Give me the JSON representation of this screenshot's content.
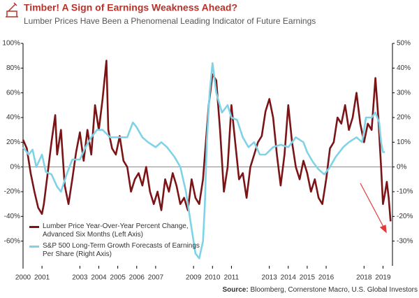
{
  "chart_data": {
    "type": "line",
    "title": "Timber! A Sign of Earnings Weakness Ahead?",
    "subtitle": "Lumber Prices Have Been a Phenomenal Leading Indicator of Future Earnings",
    "source_label": "Source:",
    "source": "Bloomberg, Cornerstone Macro, U.S. Global Investors",
    "xlim": [
      2000,
      2019.5
    ],
    "xticks": [
      2000,
      2001,
      2003,
      2004,
      2005,
      2006,
      2007,
      2009,
      2010,
      2011,
      2013,
      2014,
      2015,
      2016,
      2018,
      2019
    ],
    "ylim": [
      -80,
      100
    ],
    "yticks": [
      {
        "value": -60,
        "label": "-60%"
      },
      {
        "value": -40,
        "label": "-40%"
      },
      {
        "value": -20,
        "label": "-20%"
      },
      {
        "value": 0,
        "label": "0%"
      },
      {
        "value": 20,
        "label": "20%"
      },
      {
        "value": 40,
        "label": "40%"
      },
      {
        "value": 60,
        "label": "60%"
      },
      {
        "value": 80,
        "label": "80%"
      },
      {
        "value": 100,
        "label": "100%"
      }
    ],
    "y2lim": [
      -40,
      50
    ],
    "y2ticks": [
      {
        "value": -30,
        "label": "-30%"
      },
      {
        "value": -20,
        "label": "-20%"
      },
      {
        "value": -10,
        "label": "-10%"
      },
      {
        "value": 0,
        "label": "0%"
      },
      {
        "value": 10,
        "label": "10%"
      },
      {
        "value": 20,
        "label": "20%"
      },
      {
        "value": 30,
        "label": "30%"
      },
      {
        "value": 40,
        "label": "40%"
      },
      {
        "value": 50,
        "label": "50%"
      }
    ],
    "grid": false,
    "legend": "lower-left",
    "series": [
      {
        "name": "Lumber Price Year-Over-Year Percent Change, Advanced Six Months (Left Axis)",
        "color": "#7b1416",
        "axis": "y",
        "x": [
          2000.0,
          2000.2,
          2000.4,
          2000.6,
          2000.8,
          2001.0,
          2001.1,
          2001.3,
          2001.5,
          2001.7,
          2001.8,
          2002.0,
          2002.2,
          2002.4,
          2002.6,
          2002.8,
          2003.0,
          2003.2,
          2003.4,
          2003.6,
          2003.8,
          2004.0,
          2004.2,
          2004.4,
          2004.5,
          2004.7,
          2004.9,
          2005.1,
          2005.3,
          2005.5,
          2005.7,
          2005.9,
          2006.1,
          2006.3,
          2006.5,
          2006.7,
          2006.9,
          2007.1,
          2007.3,
          2007.5,
          2007.7,
          2007.9,
          2008.1,
          2008.3,
          2008.5,
          2008.7,
          2008.9,
          2009.1,
          2009.3,
          2009.5,
          2009.6,
          2009.8,
          2010.0,
          2010.2,
          2010.4,
          2010.6,
          2010.8,
          2011.0,
          2011.2,
          2011.4,
          2011.6,
          2011.8,
          2012.0,
          2012.2,
          2012.4,
          2012.6,
          2012.8,
          2013.0,
          2013.2,
          2013.4,
          2013.6,
          2013.8,
          2014.0,
          2014.2,
          2014.4,
          2014.6,
          2014.8,
          2015.0,
          2015.2,
          2015.4,
          2015.6,
          2015.8,
          2016.0,
          2016.2,
          2016.4,
          2016.6,
          2016.8,
          2017.0,
          2017.2,
          2017.4,
          2017.6,
          2017.8,
          2018.0,
          2018.2,
          2018.4,
          2018.6,
          2018.75,
          2018.9,
          2019.0,
          2019.1,
          2019.2,
          2019.3,
          2019.4
        ],
        "values": [
          22,
          15,
          -5,
          -20,
          -33,
          -38,
          -30,
          -5,
          20,
          42,
          10,
          30,
          -15,
          -30,
          -10,
          12,
          28,
          5,
          30,
          10,
          50,
          30,
          55,
          86,
          30,
          15,
          10,
          25,
          5,
          0,
          -20,
          -10,
          -5,
          -15,
          0,
          -20,
          -30,
          -20,
          -35,
          -10,
          -20,
          -5,
          -15,
          -30,
          -25,
          -35,
          -10,
          -25,
          -30,
          -10,
          10,
          50,
          75,
          70,
          30,
          -20,
          0,
          50,
          20,
          -10,
          -5,
          -25,
          0,
          10,
          20,
          25,
          45,
          55,
          40,
          10,
          -15,
          10,
          50,
          20,
          0,
          -10,
          5,
          -5,
          -20,
          -10,
          -25,
          -30,
          -10,
          15,
          20,
          40,
          35,
          50,
          30,
          40,
          60,
          35,
          20,
          35,
          30,
          72,
          40,
          0,
          -30,
          -22,
          -12,
          -25,
          -44
        ]
      },
      {
        "name": "S&P 500 Long-Term Growth Forecasts of Earnings Per Share (Right Axis)",
        "color": "#7fd3e6",
        "axis": "y2",
        "x": [
          2000.0,
          2000.3,
          2000.5,
          2000.7,
          2001.0,
          2001.2,
          2001.5,
          2001.8,
          2002.0,
          2002.3,
          2002.6,
          2003.0,
          2003.3,
          2003.6,
          2003.9,
          2004.2,
          2004.6,
          2005.0,
          2005.5,
          2005.8,
          2006.0,
          2006.3,
          2006.6,
          2007.0,
          2007.3,
          2007.6,
          2008.0,
          2008.3,
          2008.6,
          2008.9,
          2009.1,
          2009.3,
          2009.5,
          2009.6,
          2009.7,
          2009.85,
          2010.0,
          2010.2,
          2010.5,
          2010.8,
          2011.0,
          2011.3,
          2011.6,
          2011.9,
          2012.2,
          2012.5,
          2012.8,
          2013.2,
          2013.6,
          2014.0,
          2014.4,
          2014.8,
          2015.0,
          2015.3,
          2015.6,
          2015.9,
          2016.2,
          2016.5,
          2016.9,
          2017.2,
          2017.6,
          2017.9,
          2018.1,
          2018.4,
          2018.6,
          2018.8,
          2018.9,
          2019.0,
          2019.1
        ],
        "values": [
          8,
          5,
          7,
          0,
          5,
          -2,
          -3,
          -8,
          -10,
          -3,
          3,
          3,
          8,
          12,
          15,
          15,
          12,
          12,
          12,
          18,
          16,
          12,
          10,
          8,
          10,
          8,
          4,
          0,
          -10,
          -25,
          -35,
          -37,
          -30,
          -15,
          10,
          30,
          42,
          30,
          22,
          25,
          20,
          19,
          12,
          8,
          10,
          5,
          5,
          8,
          9,
          8,
          12,
          10,
          6,
          2,
          -1,
          -3,
          0,
          4,
          8,
          10,
          12,
          10,
          20,
          20,
          22,
          18,
          10,
          6,
          6
        ]
      }
    ]
  }
}
